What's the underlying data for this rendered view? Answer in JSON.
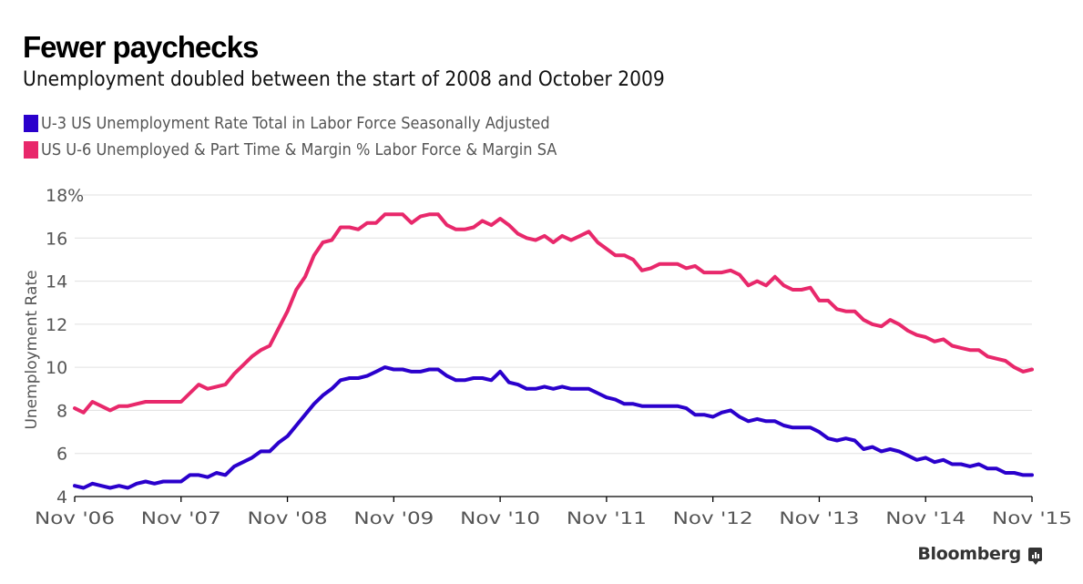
{
  "header": {
    "title": "Fewer paychecks",
    "subtitle": "Unemployment doubled between the start of 2008 and October 2009"
  },
  "legend": [
    {
      "label": "U-3 US Unemployment Rate Total in Labor Force Seasonally Adjusted",
      "color": "#2a00cc"
    },
    {
      "label": "US U-6 Unemployed & Part Time & Margin % Labor Force & Margin SA",
      "color": "#e8286b"
    }
  ],
  "brand": {
    "name": "Bloomberg",
    "icon": "bloomberg-chart-icon"
  },
  "chart_data": {
    "type": "line",
    "title": "Fewer paychecks",
    "subtitle": "Unemployment doubled between the start of 2008 and October 2009",
    "xlabel": "",
    "ylabel": "Unemployment Rate",
    "x_start": "Nov 2006",
    "x_end": "Nov 2015",
    "x_frequency": "monthly",
    "x_ticks": [
      "Nov '06",
      "Nov '07",
      "Nov '08",
      "Nov '09",
      "Nov '10",
      "Nov '11",
      "Nov '12",
      "Nov '13",
      "Nov '14",
      "Nov '15"
    ],
    "y_ticks": [
      "4",
      "6",
      "8",
      "10",
      "12",
      "14",
      "16",
      "18%"
    ],
    "ylim": [
      4,
      18
    ],
    "grid": true,
    "legend_position": "top-left",
    "series": [
      {
        "name": "U-3 US Unemployment Rate Total in Labor Force Seasonally Adjusted",
        "color": "#2a00cc",
        "values": [
          4.5,
          4.4,
          4.6,
          4.5,
          4.4,
          4.5,
          4.4,
          4.6,
          4.7,
          4.6,
          4.7,
          4.7,
          4.7,
          5.0,
          5.0,
          4.9,
          5.1,
          5.0,
          5.4,
          5.6,
          5.8,
          6.1,
          6.1,
          6.5,
          6.8,
          7.3,
          7.8,
          8.3,
          8.7,
          9.0,
          9.4,
          9.5,
          9.5,
          9.6,
          9.8,
          10.0,
          9.9,
          9.9,
          9.8,
          9.8,
          9.9,
          9.9,
          9.6,
          9.4,
          9.4,
          9.5,
          9.5,
          9.4,
          9.8,
          9.3,
          9.2,
          9.0,
          9.0,
          9.1,
          9.0,
          9.1,
          9.0,
          9.0,
          9.0,
          8.8,
          8.6,
          8.5,
          8.3,
          8.3,
          8.2,
          8.2,
          8.2,
          8.2,
          8.2,
          8.1,
          7.8,
          7.8,
          7.7,
          7.9,
          8.0,
          7.7,
          7.5,
          7.6,
          7.5,
          7.5,
          7.3,
          7.2,
          7.2,
          7.2,
          7.0,
          6.7,
          6.6,
          6.7,
          6.6,
          6.2,
          6.3,
          6.1,
          6.2,
          6.1,
          5.9,
          5.7,
          5.8,
          5.6,
          5.7,
          5.5,
          5.5,
          5.4,
          5.5,
          5.3,
          5.3,
          5.1,
          5.1,
          5.0,
          5.0
        ]
      },
      {
        "name": "US U-6 Unemployed & Part Time & Margin % Labor Force & Margin SA",
        "color": "#e8286b",
        "values": [
          8.1,
          7.9,
          8.4,
          8.2,
          8.0,
          8.2,
          8.2,
          8.3,
          8.4,
          8.4,
          8.4,
          8.4,
          8.4,
          8.8,
          9.2,
          9.0,
          9.1,
          9.2,
          9.7,
          10.1,
          10.5,
          10.8,
          11.0,
          11.8,
          12.6,
          13.6,
          14.2,
          15.2,
          15.8,
          15.9,
          16.5,
          16.5,
          16.4,
          16.7,
          16.7,
          17.1,
          17.1,
          17.1,
          16.7,
          17.0,
          17.1,
          17.1,
          16.6,
          16.4,
          16.4,
          16.5,
          16.8,
          16.6,
          16.9,
          16.6,
          16.2,
          16.0,
          15.9,
          16.1,
          15.8,
          16.1,
          15.9,
          16.1,
          16.3,
          15.8,
          15.5,
          15.2,
          15.2,
          15.0,
          14.5,
          14.6,
          14.8,
          14.8,
          14.8,
          14.6,
          14.7,
          14.4,
          14.4,
          14.4,
          14.5,
          14.3,
          13.8,
          14.0,
          13.8,
          14.2,
          13.8,
          13.6,
          13.6,
          13.7,
          13.1,
          13.1,
          12.7,
          12.6,
          12.6,
          12.2,
          12.0,
          11.9,
          12.2,
          12.0,
          11.7,
          11.5,
          11.4,
          11.2,
          11.3,
          11.0,
          10.9,
          10.8,
          10.8,
          10.5,
          10.4,
          10.3,
          10.0,
          9.8,
          9.9
        ]
      }
    ]
  }
}
